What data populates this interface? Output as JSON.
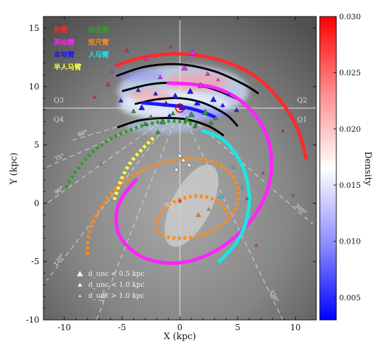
{
  "chart_data": {
    "type": "scatter",
    "xlabel": "X (kpc)",
    "ylabel": "Y (kpc)",
    "xlim": [
      -11.8,
      11.8
    ],
    "ylim": [
      -10,
      16
    ],
    "xticks": [
      -10,
      -5,
      0,
      5,
      10
    ],
    "yticks": [
      -10,
      -5,
      0,
      5,
      10,
      15
    ],
    "grid": false,
    "colorbar": {
      "label": "Density",
      "min": 0.003,
      "max": 0.03,
      "ticks": [
        0.005,
        0.01,
        0.015,
        0.02,
        0.025,
        0.03
      ],
      "tick_labels": [
        "0.005",
        "0.010",
        "0.015",
        "0.020",
        "0.025",
        "0.030"
      ],
      "colors": [
        "#0000ff",
        "#8c8cff",
        "#ffffff",
        "#ff8c8c",
        "#ff0000"
      ]
    },
    "quadrants": [
      "Q1",
      "Q2",
      "Q3",
      "Q4"
    ],
    "galactic_center_label": "GC",
    "sun": [
      0,
      8.15
    ],
    "galactic_center": [
      0,
      0
    ],
    "bar": {
      "center": [
        1.0,
        -0.2
      ],
      "half_length": 3.9,
      "half_width": 1.7,
      "angle_deg": 63
    },
    "legend": [
      {
        "label": "外臂",
        "color": "#ff2a2a"
      },
      {
        "label": "船底臂",
        "color": "#2f9c2f"
      },
      {
        "label": "英仙臂",
        "color": "#ff22ff"
      },
      {
        "label": "矩尺臂",
        "color": "#ff8c1a"
      },
      {
        "label": "本地臂",
        "color": "#1a1aff"
      },
      {
        "label": "人马臂",
        "color": "#1ae6e6"
      },
      {
        "label": "半人马臂",
        "color": "#ffff33"
      }
    ],
    "marker_key": [
      {
        "label": "d_unc < 0.5 kpc",
        "size": "large"
      },
      {
        "label": "d_unc < 1.0 kpc",
        "size": "medium"
      },
      {
        "label": "d_unc > 1.0 kpc",
        "size": "small"
      }
    ],
    "longitude_lines": [
      {
        "label": "60°",
        "end": [
          -9.3,
          5.4
        ]
      },
      {
        "label": "75°",
        "end": [
          -11.5,
          3.1
        ]
      },
      {
        "label": "90°",
        "end": [
          -11.5,
          0.0
        ]
      },
      {
        "label": "120°",
        "end": [
          -11.5,
          -6.6
        ]
      },
      {
        "label": "150°",
        "end": [
          -7.2,
          -10.0
        ]
      },
      {
        "label": "300°",
        "end": [
          11.5,
          -1.8
        ]
      },
      {
        "label": "330°",
        "end": [
          8.9,
          -10.0
        ]
      }
    ],
    "series": [
      {
        "arm": "outer",
        "color": "#ff2a2a",
        "x": [
          -5.5,
          -4.0,
          -2.0,
          0.0,
          2.0,
          4.0,
          6.0,
          7.7,
          9.2,
          10.3,
          10.9
        ],
        "y": [
          11.8,
          12.3,
          12.7,
          12.8,
          12.6,
          12.1,
          11.2,
          9.9,
          8.1,
          6.1,
          3.9
        ]
      },
      {
        "arm": "perseus",
        "color": "#ff22ff",
        "x": [
          -1.0,
          1.0,
          3.0,
          4.8,
          6.3,
          7.4,
          7.9,
          7.8,
          7.1,
          5.8,
          4.0,
          2.0,
          0.0,
          -2.0,
          -3.8,
          -5.2,
          -5.5,
          -5.0,
          -3.8
        ],
        "y": [
          10.3,
          10.2,
          9.9,
          9.1,
          7.8,
          6.1,
          4.1,
          2.0,
          0.0,
          -1.9,
          -3.5,
          -4.6,
          -5.1,
          -5.0,
          -4.3,
          -2.8,
          -1.0,
          0.5,
          2.0
        ]
      },
      {
        "arm": "local",
        "color": "#1a1aff",
        "x": [
          -3.2,
          -2.0,
          -1.0,
          0.0,
          1.0,
          2.0,
          3.0
        ],
        "y": [
          8.6,
          8.5,
          8.4,
          8.3,
          8.1,
          7.8,
          7.4
        ]
      },
      {
        "arm": "sagittarius",
        "color": "#1ae6e6",
        "x": [
          2.0,
          3.5,
          4.7,
          5.6,
          6.0,
          5.7,
          4.8,
          3.4
        ],
        "y": [
          6.2,
          5.6,
          4.4,
          2.7,
          0.5,
          -1.7,
          -3.5,
          -5.0
        ]
      },
      {
        "arm": "carina",
        "color": "#2f9c2f",
        "x": [
          1.5,
          0.0,
          -1.5,
          -3.0,
          -4.5,
          -6.0,
          -7.3,
          -8.4,
          -9.3,
          -10.0
        ],
        "y": [
          6.7,
          7.0,
          7.0,
          6.7,
          6.2,
          5.5,
          4.6,
          3.5,
          2.3,
          1.1
        ]
      },
      {
        "arm": "norma",
        "color": "#ff8c1a",
        "x": [
          4.1,
          3.8,
          3.0,
          1.9,
          0.6,
          -0.7,
          -1.6,
          -2.0,
          -1.6,
          -0.2,
          2.0,
          4.0,
          4.9,
          5.0,
          4.4,
          3.2,
          1.5,
          -0.5,
          -2.6,
          -4.6,
          -6.2,
          -7.3,
          -7.9,
          -8.0
        ],
        "y": [
          -1.0,
          -0.3,
          0.3,
          0.6,
          0.5,
          0.0,
          -0.8,
          -2.0,
          -2.7,
          -3.0,
          -2.7,
          -1.6,
          -0.2,
          1.2,
          2.5,
          3.4,
          3.8,
          3.7,
          3.1,
          2.0,
          0.5,
          -1.2,
          -2.9,
          -4.5
        ]
      },
      {
        "arm": "centaurus",
        "color": "#ffff33",
        "x": [
          -2.3,
          -3.2,
          -4.1,
          -4.8,
          -5.3,
          -5.7
        ],
        "y": [
          5.6,
          4.7,
          3.7,
          2.6,
          1.4,
          0.2
        ]
      }
    ],
    "density_fit_arcs": [
      {
        "x": [
          -5.5,
          -3.0,
          0.0,
          3.0,
          5.5,
          6.8
        ],
        "y": [
          10.9,
          11.7,
          11.9,
          11.3,
          10.2,
          9.4
        ]
      },
      {
        "x": [
          -5.0,
          -2.5,
          0.0,
          2.5,
          5.0,
          6.1
        ],
        "y": [
          9.6,
          10.2,
          10.3,
          9.9,
          8.9,
          8.1
        ]
      },
      {
        "x": [
          -3.9,
          -2.0,
          0.0,
          2.0,
          4.0,
          5.0
        ],
        "y": [
          8.5,
          8.9,
          9.0,
          8.6,
          7.6,
          6.6
        ]
      },
      {
        "x": [
          -5.4,
          -3.5,
          -1.5,
          0.5,
          2.5,
          3.8
        ],
        "y": [
          6.5,
          7.1,
          7.3,
          7.2,
          6.6,
          5.8
        ]
      }
    ],
    "sources": {
      "x": [
        -7.4,
        -0.8,
        -4.6,
        1.1,
        -2.9,
        0.4,
        2.4,
        -1.7,
        3.3,
        -6.2,
        1.8,
        -3.6,
        0.9,
        -2.1,
        4.2,
        -0.4,
        2.9,
        -5.1,
        1.5,
        -1.2,
        3.7,
        -3.3,
        0.2,
        4.9,
        -4.0,
        2.2,
        -0.6,
        1.0,
        -2.5,
        3.1,
        0.6,
        -1.5,
        2.7,
        -3.0,
        1.3,
        0.0,
        0.3,
        0.8,
        -0.3,
        1.6,
        2.5,
        3.6,
        5.4,
        7.2,
        8.9,
        -5.9,
        -6.8,
        4.6,
        5.8,
        6.6,
        9.8,
        -0.9,
        -1.9
      ],
      "y": [
        9.1,
        13.4,
        13.1,
        12.9,
        12.4,
        11.6,
        11.1,
        10.8,
        10.6,
        10.2,
        10.1,
        9.7,
        9.6,
        9.4,
        9.3,
        9.2,
        8.9,
        8.8,
        8.6,
        8.5,
        8.4,
        8.2,
        8.2,
        8.0,
        7.9,
        7.8,
        7.7,
        7.6,
        7.4,
        7.3,
        7.2,
        7.0,
        6.9,
        6.8,
        6.6,
        4.1,
        3.7,
        3.3,
        2.9,
        -1.0,
        -0.5,
        0.6,
        1.4,
        2.6,
        6.2,
        11.3,
        3.4,
        3.1,
        0.4,
        -3.6,
        0.7,
        7.5,
        6.1
      ],
      "size": [
        1,
        1,
        2,
        3,
        2,
        3,
        2,
        2,
        1,
        2,
        3,
        2,
        3,
        2,
        1,
        3,
        3,
        2,
        3,
        3,
        2,
        3,
        3,
        2,
        2,
        3,
        2,
        3,
        2,
        2,
        3,
        3,
        2,
        2,
        2,
        2,
        2,
        2,
        2,
        2,
        1,
        2,
        1,
        1,
        1,
        1,
        1,
        1,
        1,
        1,
        1,
        2,
        2
      ],
      "arm": [
        "outer",
        "outer",
        "outer",
        "perseus",
        "perseus",
        "perseus",
        "perseus",
        "perseus",
        "perseus",
        "outer",
        "perseus",
        "local",
        "local",
        "local",
        "local",
        "local",
        "local",
        "local",
        "local",
        "local",
        "local",
        "local",
        "local",
        "local",
        "carina",
        "carina",
        "carina",
        "carina",
        "carina",
        "carina",
        "carina",
        "carina",
        "carina",
        "carina",
        "carina",
        "none",
        "none",
        "none",
        "none",
        "norma",
        "norma",
        "sagittarius",
        "sagittarius",
        "perseus",
        "outer",
        "perseus",
        "norma",
        "sagittarius",
        "perseus",
        "perseus",
        "perseus",
        "local",
        "carina"
      ]
    }
  }
}
